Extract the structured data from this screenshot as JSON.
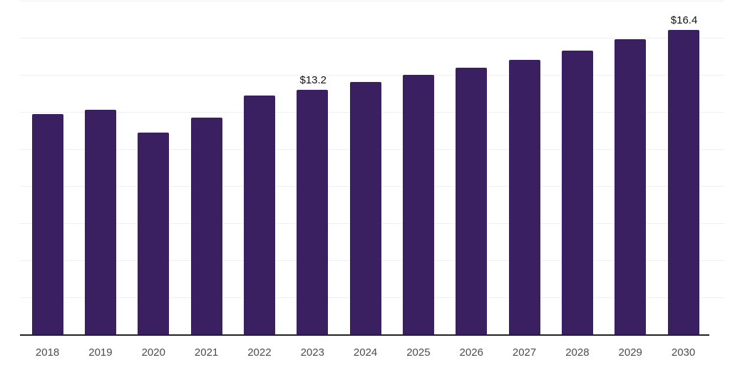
{
  "chart_data": {
    "type": "bar",
    "categories": [
      "2018",
      "2019",
      "2020",
      "2021",
      "2022",
      "2023",
      "2024",
      "2025",
      "2026",
      "2027",
      "2028",
      "2029",
      "2030"
    ],
    "values": [
      11.9,
      12.1,
      10.9,
      11.7,
      12.9,
      13.2,
      13.6,
      14.0,
      14.4,
      14.8,
      15.3,
      15.9,
      16.4
    ],
    "annotations": [
      {
        "index": 5,
        "text": "$13.2"
      },
      {
        "index": 12,
        "text": "$16.4"
      }
    ],
    "ylim": [
      0,
      18
    ],
    "grid_step": 2,
    "grid": true,
    "legend": false,
    "value_unit_prefix": "$",
    "colors": {
      "bar": "#3a1f61",
      "gridline": "#f0f0f3",
      "axis_line": "#222222",
      "tick_label": "#4c4c4c",
      "data_label": "#111111",
      "background": "#ffffff"
    }
  }
}
